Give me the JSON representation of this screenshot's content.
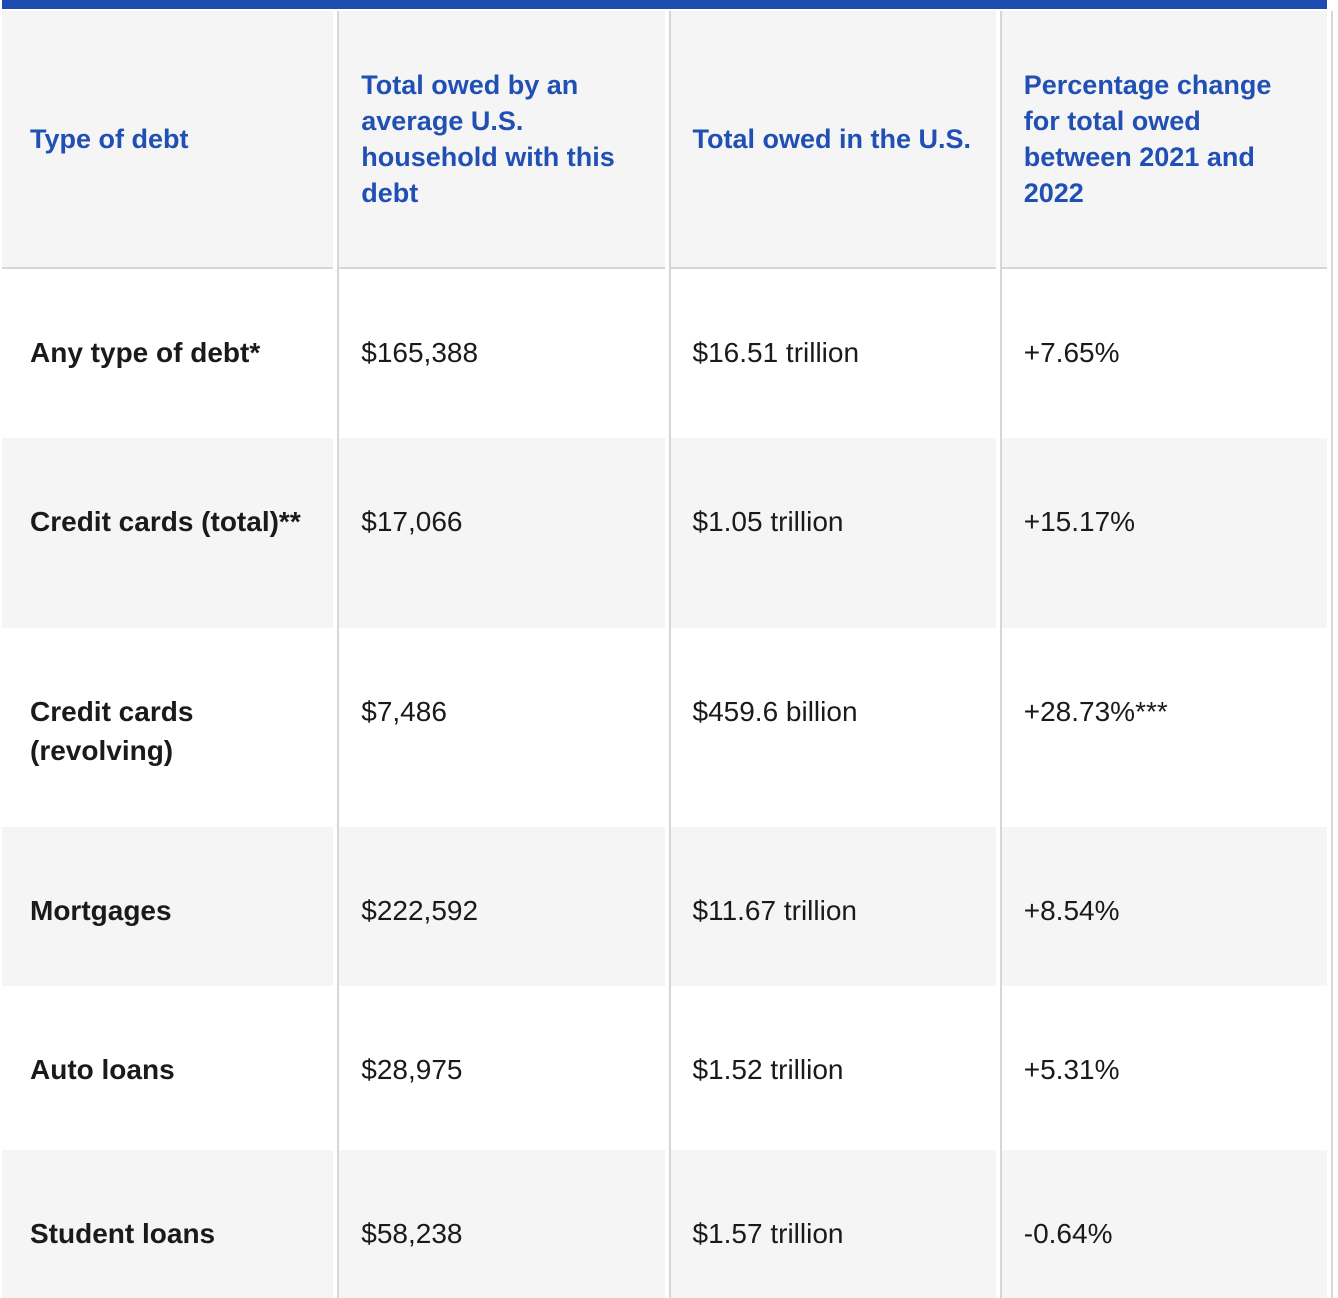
{
  "colors": {
    "top_bar": "#1F4CB0",
    "header_text": "#2150B4",
    "alt_row_background": "#F5F5F5",
    "divider": "#D6D6D6",
    "body_text": "#1A1A1A",
    "background": "#FFFFFF"
  },
  "table": {
    "headers": [
      "Type of debt",
      "Total owed by an average U.S. household with this debt",
      "Total owed in the U.S.",
      "Percentage change for total owed between 2021 and 2022"
    ],
    "rows": [
      {
        "type": "Any type of debt*",
        "household": "$165,388",
        "us_total": "$16.51 trillion",
        "change": "+7.65%"
      },
      {
        "type": "Credit cards (total)**",
        "household": "$17,066",
        "us_total": "$1.05 trillion",
        "change": "+15.17%"
      },
      {
        "type": "Credit cards (revolving)",
        "household": "$7,486",
        "us_total": "$459.6 billion",
        "change": "+28.73%***"
      },
      {
        "type": "Mortgages",
        "household": "$222,592",
        "us_total": "$11.67 trillion",
        "change": "+8.54%"
      },
      {
        "type": "Auto loans",
        "household": "$28,975",
        "us_total": "$1.52 trillion",
        "change": "+5.31%"
      },
      {
        "type": "Student loans",
        "household": "$58,238",
        "us_total": "$1.57 trillion",
        "change": "-0.64%"
      }
    ]
  },
  "chart_data": {
    "type": "table",
    "columns": [
      "Type of debt",
      "Total owed by an average U.S. household with this debt",
      "Total owed in the U.S.",
      "Percentage change for total owed between 2021 and 2022"
    ],
    "rows": [
      [
        "Any type of debt*",
        "$165,388",
        "$16.51 trillion",
        "+7.65%"
      ],
      [
        "Credit cards (total)**",
        "$17,066",
        "$1.05 trillion",
        "+15.17%"
      ],
      [
        "Credit cards (revolving)",
        "$7,486",
        "$459.6 billion",
        "+28.73%***"
      ],
      [
        "Mortgages",
        "$222,592",
        "$11.67 trillion",
        "+8.54%"
      ],
      [
        "Auto loans",
        "$28,975",
        "$1.52 trillion",
        "+5.31%"
      ],
      [
        "Student loans",
        "$58,238",
        "$1.57 trillion",
        "-0.64%"
      ]
    ]
  }
}
